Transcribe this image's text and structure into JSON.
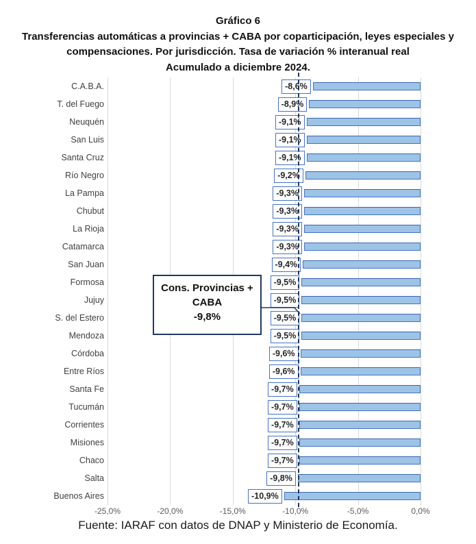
{
  "header": {
    "title": "Gráfico 6",
    "subtitle_line1": "Transferencias automáticas a provincias + CABA por coparticipación, leyes especiales y",
    "subtitle_line2": "compensaciones. Por jurisdicción. Tasa de variación % interanual real",
    "subtitle_line3": "Acumulado a diciembre 2024."
  },
  "chart_data": {
    "type": "bar",
    "orientation": "horizontal",
    "title": "Gráfico 6",
    "subtitle": "Transferencias automáticas a provincias + CABA por coparticipación, leyes especiales y compensaciones. Por jurisdicción. Tasa de variación % interanual real. Acumulado a diciembre 2024.",
    "unit": "%",
    "categories": [
      "C.A.B.A.",
      "T. del Fuego",
      "Neuquén",
      "San Luis",
      "Santa Cruz",
      "Río Negro",
      "La Pampa",
      "Chubut",
      "La Rioja",
      "Catamarca",
      "San Juan",
      "Formosa",
      "Jujuy",
      "S. del Estero",
      "Mendoza",
      "Córdoba",
      "Entre Ríos",
      "Santa Fe",
      "Tucumán",
      "Corrientes",
      "Misiones",
      "Chaco",
      "Salta",
      "Buenos Aires"
    ],
    "values": [
      -8.6,
      -8.9,
      -9.1,
      -9.1,
      -9.1,
      -9.2,
      -9.3,
      -9.3,
      -9.3,
      -9.3,
      -9.4,
      -9.5,
      -9.5,
      -9.5,
      -9.5,
      -9.6,
      -9.6,
      -9.7,
      -9.7,
      -9.7,
      -9.7,
      -9.7,
      -9.8,
      -10.9
    ],
    "value_labels": [
      "-8,6%",
      "-8,9%",
      "-9,1%",
      "-9,1%",
      "-9,1%",
      "-9,2%",
      "-9,3%",
      "-9,3%",
      "-9,3%",
      "-9,3%",
      "-9,4%",
      "-9,5%",
      "-9,5%",
      "-9,5%",
      "-9,5%",
      "-9,6%",
      "-9,6%",
      "-9,7%",
      "-9,7%",
      "-9,7%",
      "-9,7%",
      "-9,7%",
      "-9,8%",
      "-10,9%"
    ],
    "xlim": [
      -25,
      0
    ],
    "x_tick_values": [
      -25,
      -20,
      -15,
      -10,
      -5,
      0
    ],
    "x_tick_labels": [
      "-25,0%",
      "-20,0%",
      "-15,0%",
      "-10,0%",
      "-5,0%",
      "0,0%"
    ],
    "grid": true,
    "legend": "none",
    "reference_line": {
      "value": -9.8,
      "style": "dashed"
    },
    "annotation": {
      "line1": "Cons. Provincias +",
      "line2": "CABA",
      "line3": "-9,8%"
    },
    "colors": {
      "bar_fill": "#9DC3E6",
      "bar_border": "#4472C4",
      "value_box_border": "#4472C4",
      "gridline": "#D9D9D9",
      "reference_line": "#1F3864",
      "annotation_border": "#1F3864"
    }
  },
  "footer": {
    "source": "Fuente: IARAF con datos de DNAP y Ministerio de Economía."
  }
}
